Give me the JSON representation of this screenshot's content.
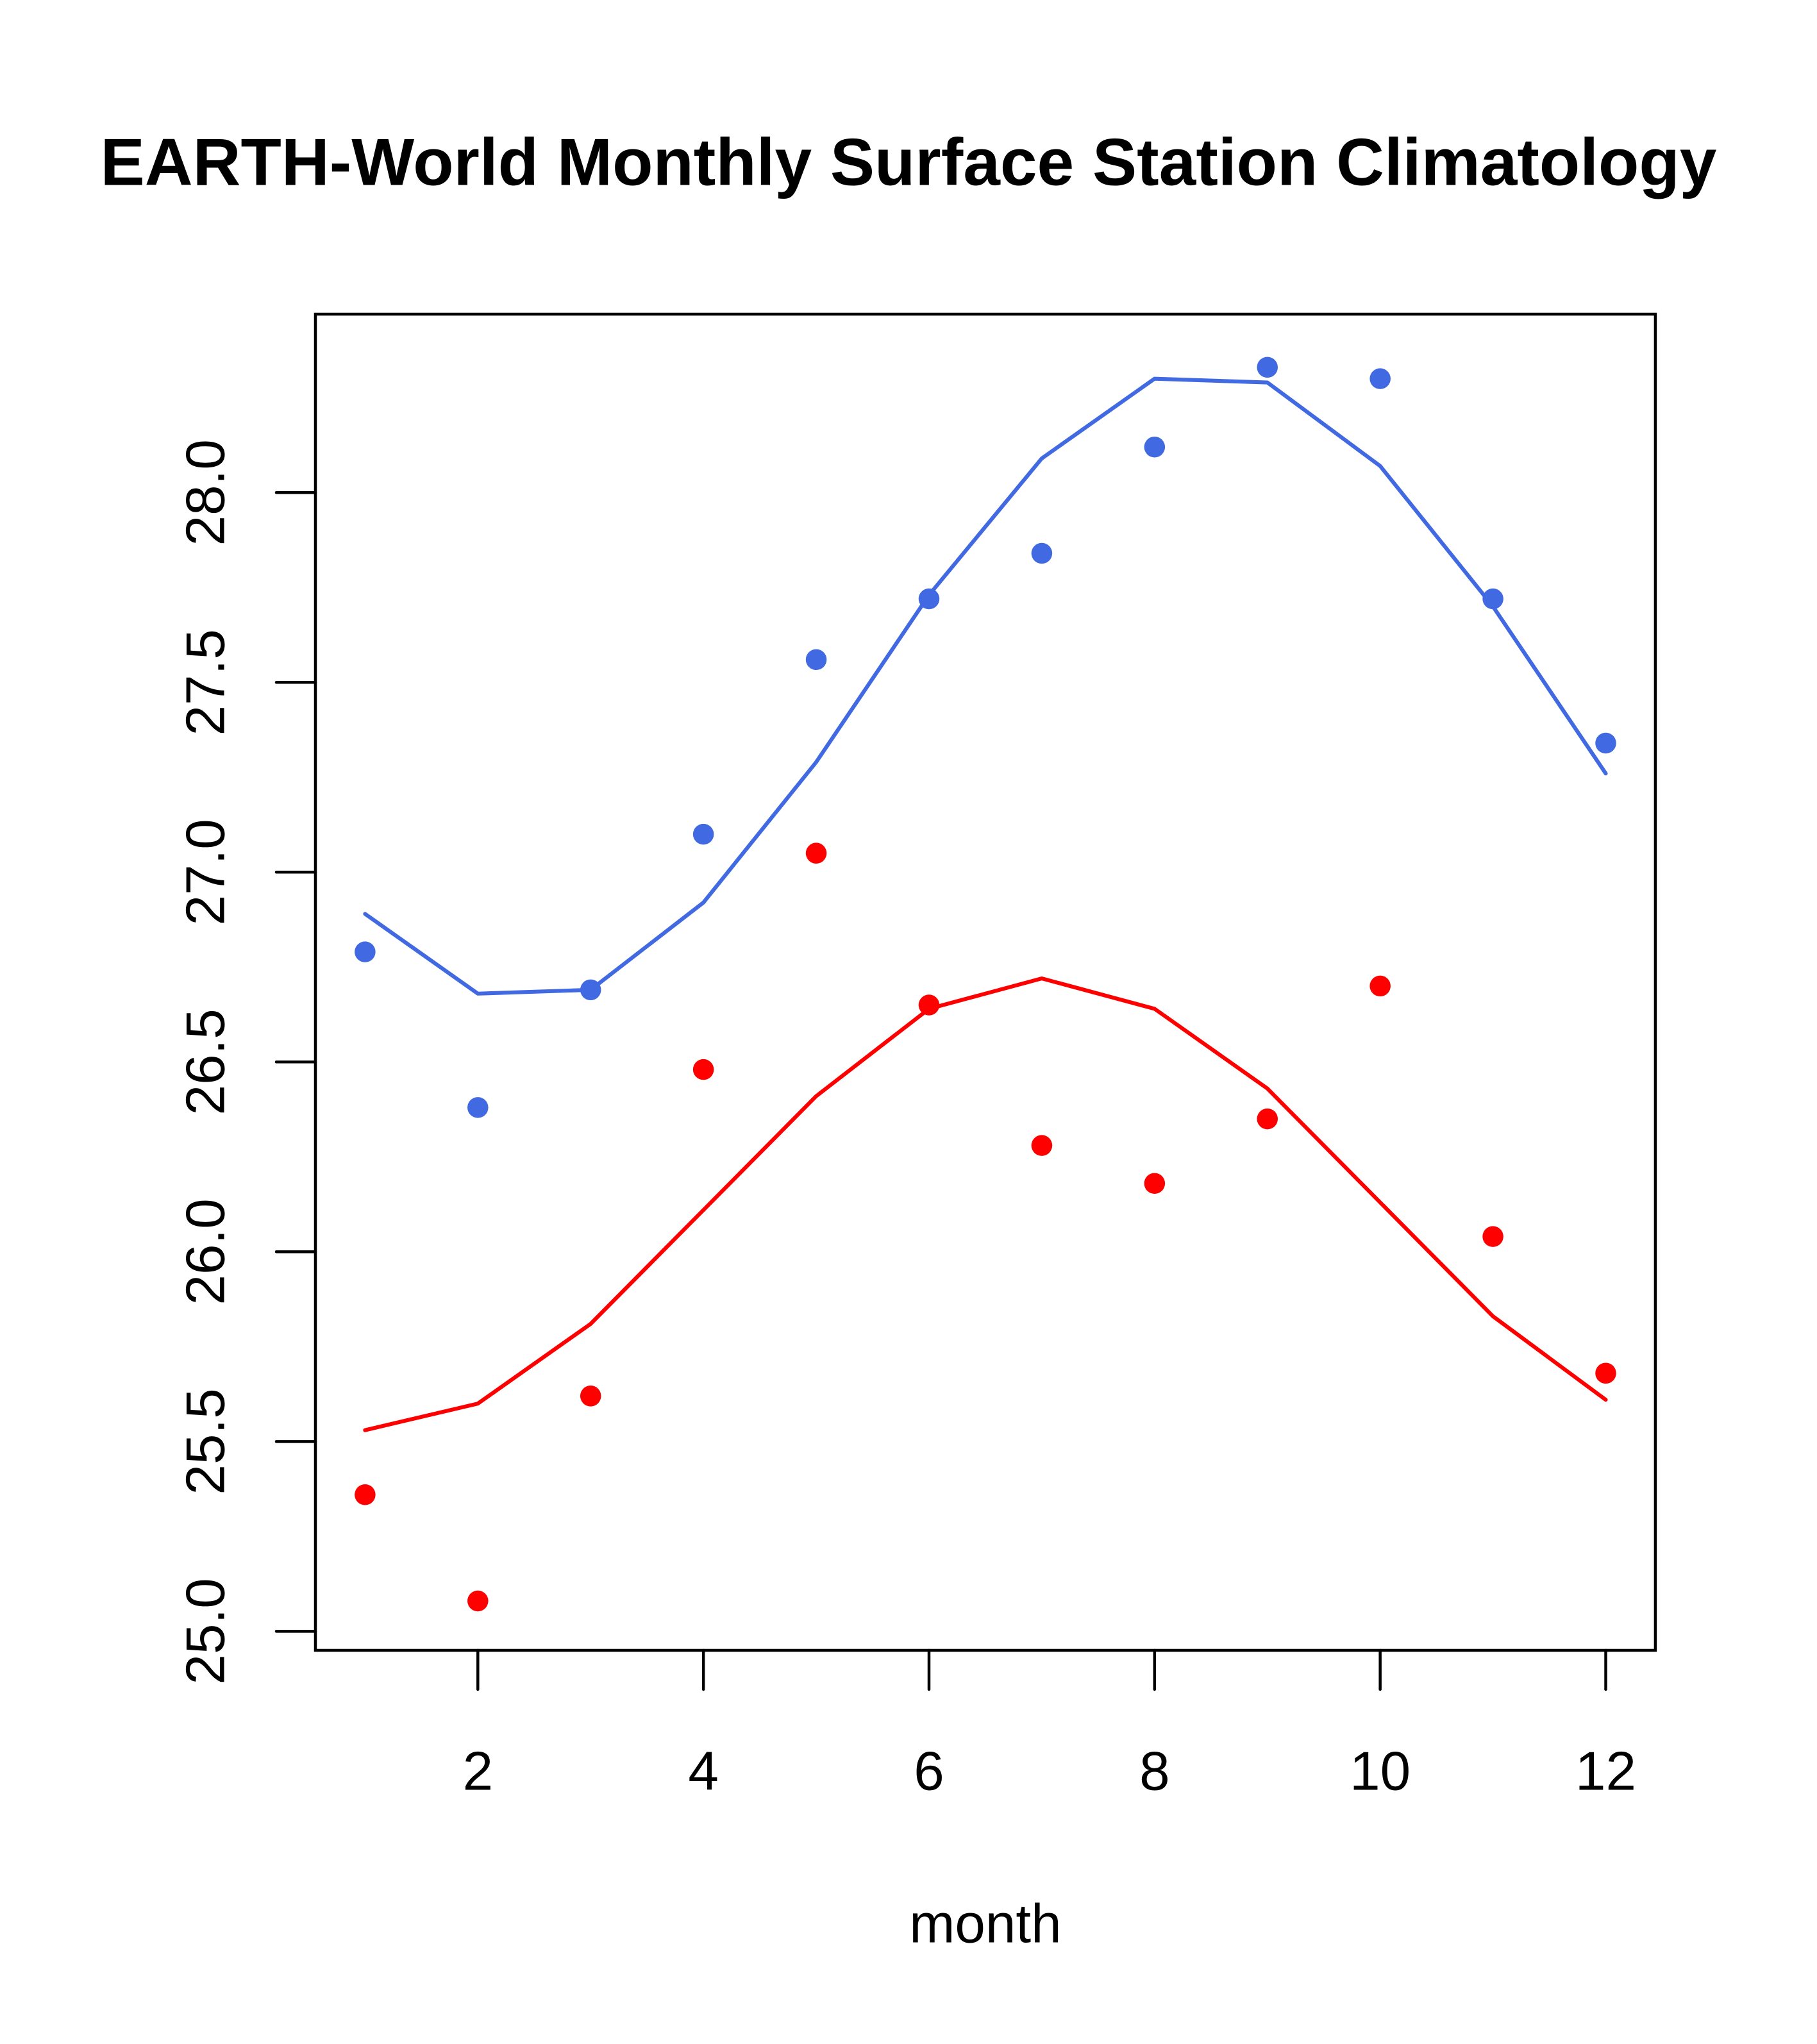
{
  "chart_data": {
    "type": "scatter",
    "title": "EARTH-World Monthly Surface Station Climatology",
    "xlabel": "month",
    "ylabel": "",
    "xlim": [
      0.56,
      12.44
    ],
    "ylim": [
      24.95,
      28.47
    ],
    "x_ticks": [
      2,
      4,
      6,
      8,
      10,
      12
    ],
    "x_tick_labels": [
      "2",
      "4",
      "6",
      "8",
      "10",
      "12"
    ],
    "y_ticks": [
      25.0,
      25.5,
      26.0,
      26.5,
      27.0,
      27.5,
      28.0
    ],
    "y_tick_labels": [
      "25.0",
      "25.5",
      "26.0",
      "26.5",
      "27.0",
      "27.5",
      "28.0"
    ],
    "grid": false,
    "legend": null,
    "x": [
      1,
      2,
      3,
      4,
      5,
      6,
      7,
      8,
      9,
      10,
      11,
      12
    ],
    "series": [
      {
        "name": "blue-points",
        "kind": "points",
        "color": "#4169E1",
        "values": [
          26.79,
          26.38,
          26.69,
          27.1,
          27.56,
          27.72,
          27.84,
          28.12,
          28.33,
          28.3,
          27.72,
          27.34
        ]
      },
      {
        "name": "blue-line",
        "kind": "line",
        "color": "#4169E1",
        "values": [
          26.89,
          26.68,
          26.69,
          26.92,
          27.29,
          27.73,
          28.09,
          28.3,
          28.29,
          28.07,
          27.7,
          27.26
        ]
      },
      {
        "name": "red-points",
        "kind": "points",
        "color": "#FF0000",
        "values": [
          25.36,
          25.08,
          25.62,
          26.48,
          27.05,
          26.65,
          26.28,
          26.18,
          26.35,
          26.7,
          26.04,
          25.68
        ]
      },
      {
        "name": "red-line",
        "kind": "line",
        "color": "#FF0000",
        "values": [
          25.53,
          25.6,
          25.81,
          26.11,
          26.41,
          26.64,
          26.72,
          26.64,
          26.43,
          26.13,
          25.83,
          25.61
        ]
      }
    ]
  }
}
